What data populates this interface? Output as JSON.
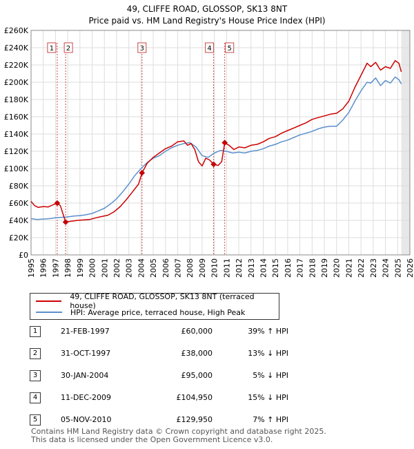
{
  "title": "49, CLIFFE ROAD, GLOSSOP, SK13 8NT",
  "subtitle": "Price paid vs. HM Land Registry's House Price Index (HPI)",
  "legend": [
    {
      "label": "49, CLIFFE ROAD, GLOSSOP, SK13 8NT (terraced house)",
      "color": "#cc0000"
    },
    {
      "label": "HPI: Average price, terraced house, High Peak",
      "color": "#5b8fcc"
    }
  ],
  "sales": [
    {
      "num": "1",
      "date": "21-FEB-1997",
      "price": "£60,000",
      "hpi": "39% ↑ HPI"
    },
    {
      "num": "2",
      "date": "31-OCT-1997",
      "price": "£38,000",
      "hpi": "13% ↓ HPI"
    },
    {
      "num": "3",
      "date": "30-JAN-2004",
      "price": "£95,000",
      "hpi": "5% ↓ HPI"
    },
    {
      "num": "4",
      "date": "11-DEC-2009",
      "price": "£104,950",
      "hpi": "15% ↓ HPI"
    },
    {
      "num": "5",
      "date": "05-NOV-2010",
      "price": "£129,950",
      "hpi": "7% ↑ HPI"
    }
  ],
  "footer": {
    "line1": "Contains HM Land Registry data © Crown copyright and database right 2025.",
    "line2": "This data is licensed under the Open Government Licence v3.0."
  },
  "chart_data": {
    "type": "line",
    "title": "49, CLIFFE ROAD, GLOSSOP, SK13 8NT",
    "subtitle": "Price paid vs. HM Land Registry's House Price Index (HPI)",
    "xlim": [
      1995,
      2026
    ],
    "ylim": [
      0,
      260000
    ],
    "x_ticks": [
      1995,
      1996,
      1997,
      1998,
      1999,
      2000,
      2001,
      2002,
      2003,
      2004,
      2005,
      2006,
      2007,
      2008,
      2009,
      2010,
      2011,
      2012,
      2013,
      2014,
      2015,
      2016,
      2017,
      2018,
      2019,
      2020,
      2021,
      2022,
      2023,
      2024,
      2025,
      2026
    ],
    "y_ticks": [
      0,
      20000,
      40000,
      60000,
      80000,
      100000,
      120000,
      140000,
      160000,
      180000,
      200000,
      220000,
      240000,
      260000
    ],
    "y_tick_labels": [
      "£0",
      "£20K",
      "£40K",
      "£60K",
      "£80K",
      "£100K",
      "£120K",
      "£140K",
      "£160K",
      "£180K",
      "£200K",
      "£220K",
      "£240K",
      "£260K"
    ],
    "grid": true,
    "future_shade_from": 2025.3,
    "series": [
      {
        "name": "49, CLIFFE ROAD, GLOSSOP, SK13 8NT (terraced house)",
        "color": "#cc0000",
        "x": [
          1995.0,
          1995.3,
          1995.6,
          1996.0,
          1996.4,
          1996.8,
          1997.14,
          1997.4,
          1997.83,
          1998.3,
          1998.8,
          1999.3,
          1999.8,
          2000.3,
          2000.8,
          2001.3,
          2001.8,
          2002.3,
          2002.8,
          2003.3,
          2003.8,
          2004.08,
          2004.5,
          2005.0,
          2005.5,
          2006.0,
          2006.5,
          2007.0,
          2007.5,
          2007.8,
          2008.1,
          2008.4,
          2008.7,
          2009.0,
          2009.3,
          2009.6,
          2009.94,
          2010.3,
          2010.6,
          2010.85,
          2011.2,
          2011.6,
          2012.0,
          2012.5,
          2013.0,
          2013.5,
          2014.0,
          2014.5,
          2015.0,
          2015.5,
          2016.0,
          2016.5,
          2017.0,
          2017.5,
          2018.0,
          2018.5,
          2019.0,
          2019.5,
          2020.0,
          2020.5,
          2021.0,
          2021.5,
          2022.0,
          2022.5,
          2022.8,
          2023.2,
          2023.6,
          2024.0,
          2024.4,
          2024.8,
          2025.1,
          2025.3
        ],
        "values": [
          62000,
          57000,
          55000,
          56000,
          55500,
          58000,
          60000,
          57000,
          38000,
          39000,
          40000,
          40500,
          41000,
          43000,
          44500,
          46000,
          50000,
          56000,
          64000,
          73000,
          82000,
          95000,
          106000,
          113000,
          118000,
          123000,
          126000,
          131000,
          132000,
          127000,
          129000,
          122000,
          108000,
          103000,
          112000,
          110000,
          104950,
          103500,
          108000,
          129950,
          127000,
          122000,
          125000,
          124000,
          127000,
          128000,
          131000,
          135000,
          137000,
          141000,
          144000,
          147000,
          150000,
          153000,
          157000,
          159000,
          161000,
          163000,
          164000,
          169000,
          178000,
          194000,
          208000,
          222000,
          218000,
          223000,
          214000,
          218000,
          216000,
          225000,
          222000,
          212000
        ]
      },
      {
        "name": "HPI: Average price, terraced house, High Peak",
        "color": "#5b8fcc",
        "x": [
          1995.0,
          1995.5,
          1996.0,
          1996.5,
          1997.0,
          1997.5,
          1998.0,
          1998.5,
          1999.0,
          1999.5,
          2000.0,
          2000.5,
          2001.0,
          2001.5,
          2002.0,
          2002.5,
          2003.0,
          2003.5,
          2004.0,
          2004.5,
          2005.0,
          2005.5,
          2006.0,
          2006.5,
          2007.0,
          2007.5,
          2008.0,
          2008.5,
          2009.0,
          2009.5,
          2010.0,
          2010.5,
          2011.0,
          2011.5,
          2012.0,
          2012.5,
          2013.0,
          2013.5,
          2014.0,
          2014.5,
          2015.0,
          2015.5,
          2016.0,
          2016.5,
          2017.0,
          2017.5,
          2018.0,
          2018.5,
          2019.0,
          2019.5,
          2020.0,
          2020.5,
          2021.0,
          2021.5,
          2022.0,
          2022.5,
          2022.8,
          2023.2,
          2023.6,
          2024.0,
          2024.4,
          2024.8,
          2025.1,
          2025.3
        ],
        "values": [
          42000,
          41000,
          41500,
          42000,
          43000,
          43500,
          44000,
          45000,
          45500,
          46500,
          48000,
          51000,
          54000,
          59000,
          65000,
          73000,
          82000,
          92000,
          100000,
          107000,
          112000,
          115000,
          120000,
          124000,
          127000,
          129000,
          130000,
          125000,
          115000,
          113000,
          118000,
          121000,
          120000,
          118000,
          119000,
          118000,
          120000,
          121000,
          123000,
          126000,
          128000,
          131000,
          133000,
          136000,
          139000,
          141000,
          143000,
          146000,
          148000,
          149000,
          149000,
          156000,
          165000,
          178000,
          190000,
          200000,
          199000,
          205000,
          196000,
          202000,
          199000,
          206000,
          203000,
          198000
        ]
      }
    ],
    "markers": [
      {
        "num": "1",
        "x": 1997.14,
        "y": 60000
      },
      {
        "num": "2",
        "x": 1997.83,
        "y": 38000
      },
      {
        "num": "3",
        "x": 2004.08,
        "y": 95000
      },
      {
        "num": "4",
        "x": 2009.94,
        "y": 104950
      },
      {
        "num": "5",
        "x": 2010.85,
        "y": 129950
      }
    ]
  }
}
